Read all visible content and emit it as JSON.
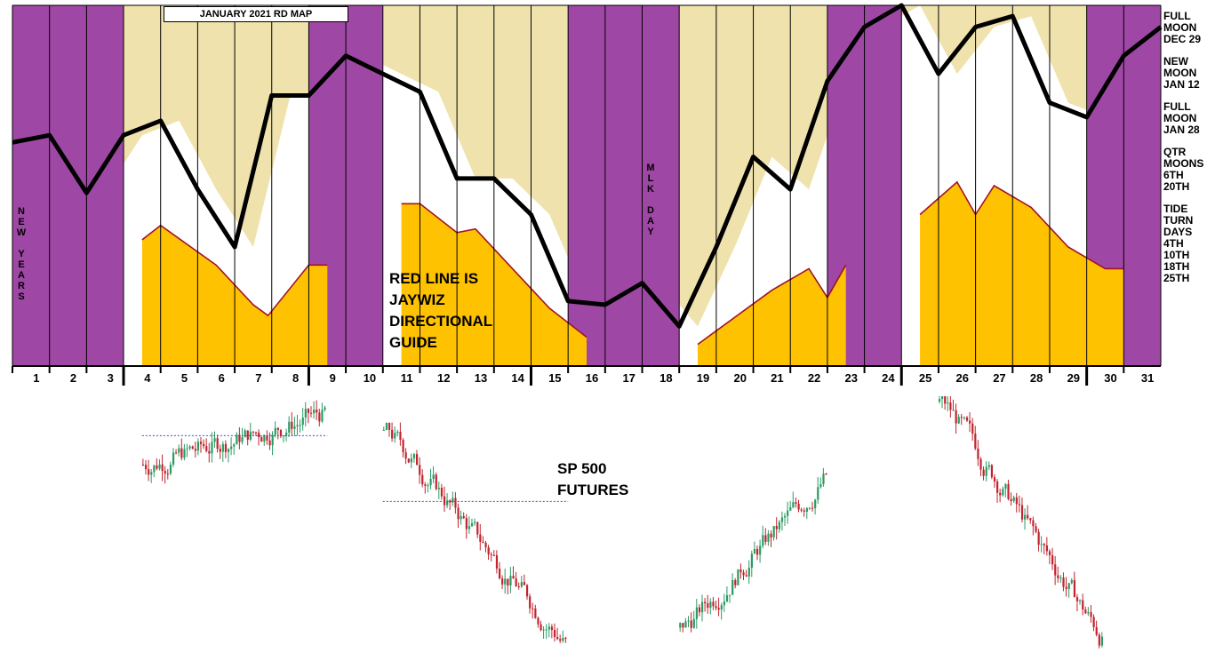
{
  "title": "JANUARY 2021 RD MAP",
  "legend": [
    {
      "lines": [
        "FULL",
        "MOON",
        "DEC 29"
      ]
    },
    {
      "lines": [
        "NEW",
        "MOON",
        "JAN 12"
      ]
    },
    {
      "lines": [
        "FULL",
        "MOON",
        "JAN 28"
      ]
    },
    {
      "lines": [
        "QTR",
        "MOONS",
        "6TH",
        "20TH"
      ]
    },
    {
      "lines": [
        "TIDE",
        "TURN",
        "DAYS",
        "4TH",
        "10TH",
        "18TH",
        "25TH"
      ]
    }
  ],
  "annotations": {
    "red_line": [
      "RED LINE IS",
      "JAYWIZ",
      "DIRECTIONAL",
      "GUIDE"
    ],
    "sp500": [
      "SP 500",
      "FUTURES"
    ],
    "new_years": "NEW YEARS",
    "mlk_day": "MLK DAY"
  },
  "colors": {
    "purple": "#9f47a5",
    "tan": "#efe2ad",
    "gold": "#fec200",
    "red": "#a0122a",
    "up": "#2a9b62",
    "down": "#c2232e",
    "guide": "#3355cc"
  },
  "chart_data": {
    "type": "area",
    "title": "JANUARY 2021 RD MAP",
    "x_labels": [
      1,
      2,
      3,
      4,
      5,
      6,
      7,
      8,
      9,
      10,
      11,
      12,
      13,
      14,
      15,
      16,
      17,
      18,
      19,
      20,
      21,
      22,
      23,
      24,
      25,
      26,
      27,
      28,
      29,
      30,
      31
    ],
    "purple_days": [
      1,
      2,
      3,
      9,
      10,
      16,
      17,
      18,
      23,
      24,
      30,
      31
    ],
    "segments": [
      {
        "from": 4,
        "to": 8
      },
      {
        "from": 11,
        "to": 15
      },
      {
        "from": 19,
        "to": 22
      },
      {
        "from": 25,
        "to": 29
      }
    ],
    "black_line": [
      {
        "x": 0.5,
        "y": 0.62
      },
      {
        "x": 1.5,
        "y": 0.64
      },
      {
        "x": 2.5,
        "y": 0.48
      },
      {
        "x": 3.5,
        "y": 0.64
      },
      {
        "x": 4.5,
        "y": 0.68
      },
      {
        "x": 5.5,
        "y": 0.49
      },
      {
        "x": 6.5,
        "y": 0.33
      },
      {
        "x": 7.5,
        "y": 0.75
      },
      {
        "x": 8.5,
        "y": 0.75
      },
      {
        "x": 9.5,
        "y": 0.86
      },
      {
        "x": 10.5,
        "y": 0.81
      },
      {
        "x": 11.5,
        "y": 0.76
      },
      {
        "x": 12.5,
        "y": 0.52
      },
      {
        "x": 13.5,
        "y": 0.52
      },
      {
        "x": 14.5,
        "y": 0.42
      },
      {
        "x": 15.5,
        "y": 0.18
      },
      {
        "x": 16.5,
        "y": 0.17
      },
      {
        "x": 17.5,
        "y": 0.23
      },
      {
        "x": 18.5,
        "y": 0.11
      },
      {
        "x": 19.5,
        "y": 0.33
      },
      {
        "x": 20.5,
        "y": 0.58
      },
      {
        "x": 21.5,
        "y": 0.49
      },
      {
        "x": 22.5,
        "y": 0.79
      },
      {
        "x": 23.5,
        "y": 0.94
      },
      {
        "x": 24.5,
        "y": 1.0
      },
      {
        "x": 25.5,
        "y": 0.81
      },
      {
        "x": 26.5,
        "y": 0.94
      },
      {
        "x": 27.5,
        "y": 0.97
      },
      {
        "x": 28.5,
        "y": 0.73
      },
      {
        "x": 29.5,
        "y": 0.69
      },
      {
        "x": 30.5,
        "y": 0.86
      },
      {
        "x": 31.5,
        "y": 0.94
      }
    ],
    "red_line": [
      {
        "x": 3.5,
        "y": 0.35
      },
      {
        "x": 4.0,
        "y": 0.39
      },
      {
        "x": 5.5,
        "y": 0.28
      },
      {
        "x": 6.5,
        "y": 0.17
      },
      {
        "x": 6.9,
        "y": 0.14
      },
      {
        "x": 8.0,
        "y": 0.28
      },
      {
        "x": 8.5,
        "y": 0.28
      },
      {
        "x": 10.5,
        "y": 0.45
      },
      {
        "x": 11.0,
        "y": 0.45
      },
      {
        "x": 12.0,
        "y": 0.37
      },
      {
        "x": 12.5,
        "y": 0.38
      },
      {
        "x": 13.5,
        "y": 0.27
      },
      {
        "x": 14.5,
        "y": 0.16
      },
      {
        "x": 15.5,
        "y": 0.08
      },
      {
        "x": 18.5,
        "y": 0.06
      },
      {
        "x": 20.5,
        "y": 0.21
      },
      {
        "x": 21.5,
        "y": 0.27
      },
      {
        "x": 22.0,
        "y": 0.19
      },
      {
        "x": 22.5,
        "y": 0.28
      },
      {
        "x": 24.5,
        "y": 0.42
      },
      {
        "x": 25.5,
        "y": 0.51
      },
      {
        "x": 26.0,
        "y": 0.42
      },
      {
        "x": 26.5,
        "y": 0.5
      },
      {
        "x": 27.5,
        "y": 0.44
      },
      {
        "x": 28.5,
        "y": 0.33
      },
      {
        "x": 29.5,
        "y": 0.27
      },
      {
        "x": 30.0,
        "y": 0.27
      }
    ],
    "sp500_futures": {
      "type": "candlestick",
      "segments": [
        {
          "from_day": 4,
          "to_day": 9,
          "start": 0.74,
          "end": 0.94,
          "low": 0.0,
          "high": 1.0,
          "guide": 0.85
        },
        {
          "from_day": 10.5,
          "to_day": 15.5,
          "start": 0.87,
          "end": 0.02,
          "low": 0.0,
          "high": 0.9,
          "guide": 0.6
        },
        {
          "from_day": 18.5,
          "to_day": 22.5,
          "start": 0.12,
          "end": 0.72,
          "low": 0.02,
          "high": 0.93
        },
        {
          "from_day": 25.5,
          "to_day": 30.0,
          "start": 0.98,
          "end": 0.04,
          "low": 0.0,
          "high": 1.0
        }
      ]
    }
  }
}
